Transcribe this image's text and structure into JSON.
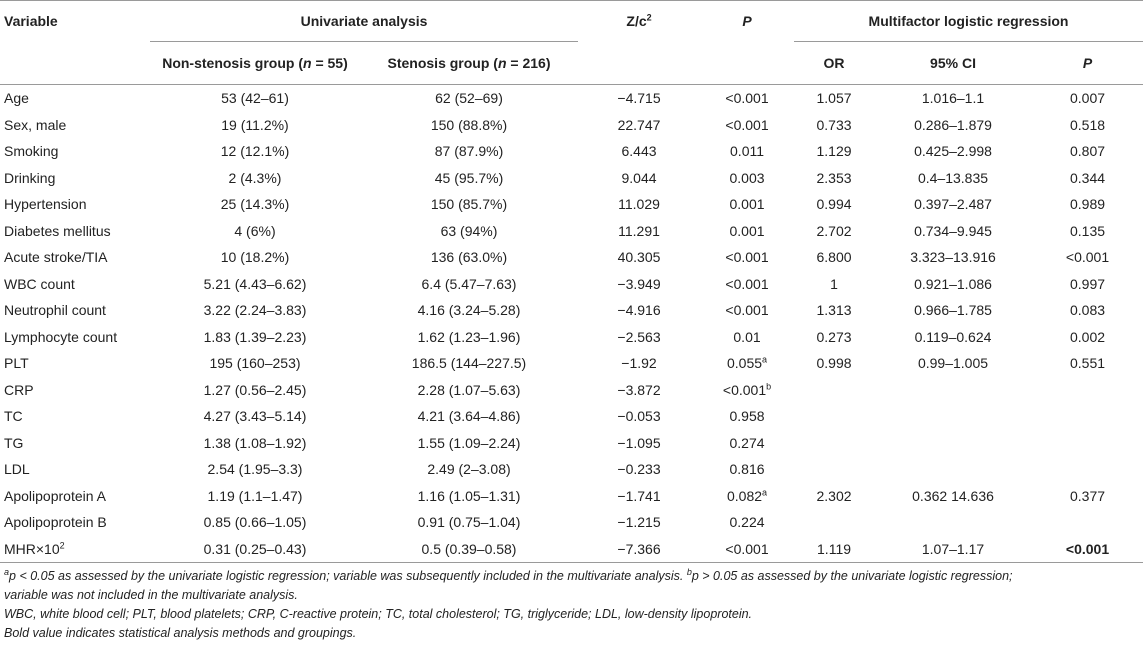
{
  "header": {
    "variable": "Variable",
    "univariate": "Univariate analysis",
    "z_c": "Z/c",
    "z_c_sup": "2",
    "p": "P",
    "multifactor": "Multifactor logistic regression",
    "non_stenosis_pre": "Non-stenosis group (",
    "non_stenosis_n": "n",
    "non_stenosis_post": " = 55)",
    "stenosis_pre": "Stenosis group (",
    "stenosis_n": "n",
    "stenosis_post": " = 216)",
    "or": "OR",
    "ci": "95% CI",
    "p2": "P"
  },
  "rows": [
    {
      "variable": "Age",
      "non": "53 (42–61)",
      "sten": "62 (52–69)",
      "z": "−4.715",
      "p": "<0.001",
      "p_sup": "",
      "or": "1.057",
      "ci": "1.016–1.1",
      "p2": "0.007"
    },
    {
      "variable": "Sex, male",
      "non": "19 (11.2%)",
      "sten": "150 (88.8%)",
      "z": "22.747",
      "p": "<0.001",
      "p_sup": "",
      "or": "0.733",
      "ci": "0.286–1.879",
      "p2": "0.518"
    },
    {
      "variable": "Smoking",
      "non": "12 (12.1%)",
      "sten": "87 (87.9%)",
      "z": "6.443",
      "p": "0.011",
      "p_sup": "",
      "or": "1.129",
      "ci": "0.425–2.998",
      "p2": "0.807"
    },
    {
      "variable": "Drinking",
      "non": "2 (4.3%)",
      "sten": "45 (95.7%)",
      "z": "9.044",
      "p": "0.003",
      "p_sup": "",
      "or": "2.353",
      "ci": "0.4–13.835",
      "p2": "0.344"
    },
    {
      "variable": "Hypertension",
      "non": "25 (14.3%)",
      "sten": "150 (85.7%)",
      "z": "11.029",
      "p": "0.001",
      "p_sup": "",
      "or": "0.994",
      "ci": "0.397–2.487",
      "p2": "0.989"
    },
    {
      "variable": "Diabetes mellitus",
      "non": "4 (6%)",
      "sten": "63 (94%)",
      "z": "11.291",
      "p": "0.001",
      "p_sup": "",
      "or": "2.702",
      "ci": "0.734–9.945",
      "p2": "0.135"
    },
    {
      "variable": "Acute stroke/TIA",
      "non": "10 (18.2%)",
      "sten": "136 (63.0%)",
      "z": "40.305",
      "p": "<0.001",
      "p_sup": "",
      "or": "6.800",
      "ci": "3.323–13.916",
      "p2": "<0.001"
    },
    {
      "variable": "WBC count",
      "non": "5.21 (4.43–6.62)",
      "sten": "6.4 (5.47–7.63)",
      "z": "−3.949",
      "p": "<0.001",
      "p_sup": "",
      "or": "1",
      "ci": "0.921–1.086",
      "p2": "0.997"
    },
    {
      "variable": "Neutrophil count",
      "non": "3.22 (2.24–3.83)",
      "sten": "4.16 (3.24–5.28)",
      "z": "−4.916",
      "p": "<0.001",
      "p_sup": "",
      "or": "1.313",
      "ci": "0.966–1.785",
      "p2": "0.083"
    },
    {
      "variable": "Lymphocyte count",
      "non": "1.83 (1.39–2.23)",
      "sten": "1.62 (1.23–1.96)",
      "z": "−2.563",
      "p": "0.01",
      "p_sup": "",
      "or": "0.273",
      "ci": "0.119–0.624",
      "p2": "0.002"
    },
    {
      "variable": "PLT",
      "non": "195 (160–253)",
      "sten": "186.5 (144–227.5)",
      "z": "−1.92",
      "p": "0.055",
      "p_sup": "a",
      "or": "0.998",
      "ci": "0.99–1.005",
      "p2": "0.551"
    },
    {
      "variable": "CRP",
      "non": "1.27 (0.56–2.45)",
      "sten": "2.28 (1.07–5.63)",
      "z": "−3.872",
      "p": "<0.001",
      "p_sup": "b",
      "or": "",
      "ci": "",
      "p2": ""
    },
    {
      "variable": "TC",
      "non": "4.27 (3.43–5.14)",
      "sten": "4.21 (3.64–4.86)",
      "z": "−0.053",
      "p": "0.958",
      "p_sup": "",
      "or": "",
      "ci": "",
      "p2": ""
    },
    {
      "variable": "TG",
      "non": "1.38 (1.08–1.92)",
      "sten": "1.55 (1.09–2.24)",
      "z": "−1.095",
      "p": "0.274",
      "p_sup": "",
      "or": "",
      "ci": "",
      "p2": ""
    },
    {
      "variable": "LDL",
      "non": "2.54 (1.95–3.3)",
      "sten": "2.49 (2–3.08)",
      "z": "−0.233",
      "p": "0.816",
      "p_sup": "",
      "or": "",
      "ci": "",
      "p2": ""
    },
    {
      "variable": "Apolipoprotein A",
      "non": "1.19 (1.1–1.47)",
      "sten": "1.16 (1.05–1.31)",
      "z": "−1.741",
      "p": "0.082",
      "p_sup": "a",
      "or": "2.302",
      "ci": "0.362 14.636",
      "p2": "0.377"
    },
    {
      "variable": "Apolipoprotein B",
      "non": "0.85 (0.66–1.05)",
      "sten": "0.91 (0.75–1.04)",
      "z": "−1.215",
      "p": "0.224",
      "p_sup": "",
      "or": "",
      "ci": "",
      "p2": ""
    }
  ],
  "last_row": {
    "variable": "MHR×10",
    "variable_sup": "2",
    "non": "0.31 (0.25–0.43)",
    "sten": "0.5 (0.39–0.58)",
    "z": "−7.366",
    "p": "<0.001",
    "or": "1.119",
    "ci": "1.07–1.17",
    "p2": "<0.001"
  },
  "notes": {
    "line1_sup_a": "a",
    "line1_a_p": "p",
    "line1_a_text": " < 0.05 as assessed by the univariate logistic regression; variable was subsequently included in the multivariate analysis. ",
    "line1_sup_b": "b",
    "line1_b_p": "p",
    "line1_b_text": " > 0.05 as assessed by the univariate logistic regression;",
    "line2": "variable was not included in the multivariate analysis.",
    "line3": "WBC, white blood cell; PLT, blood platelets; CRP, C-reactive protein; TC, total cholesterol; TG, triglyceride; LDL, low-density lipoprotein.",
    "line4": "Bold value indicates statistical analysis methods and groupings."
  }
}
